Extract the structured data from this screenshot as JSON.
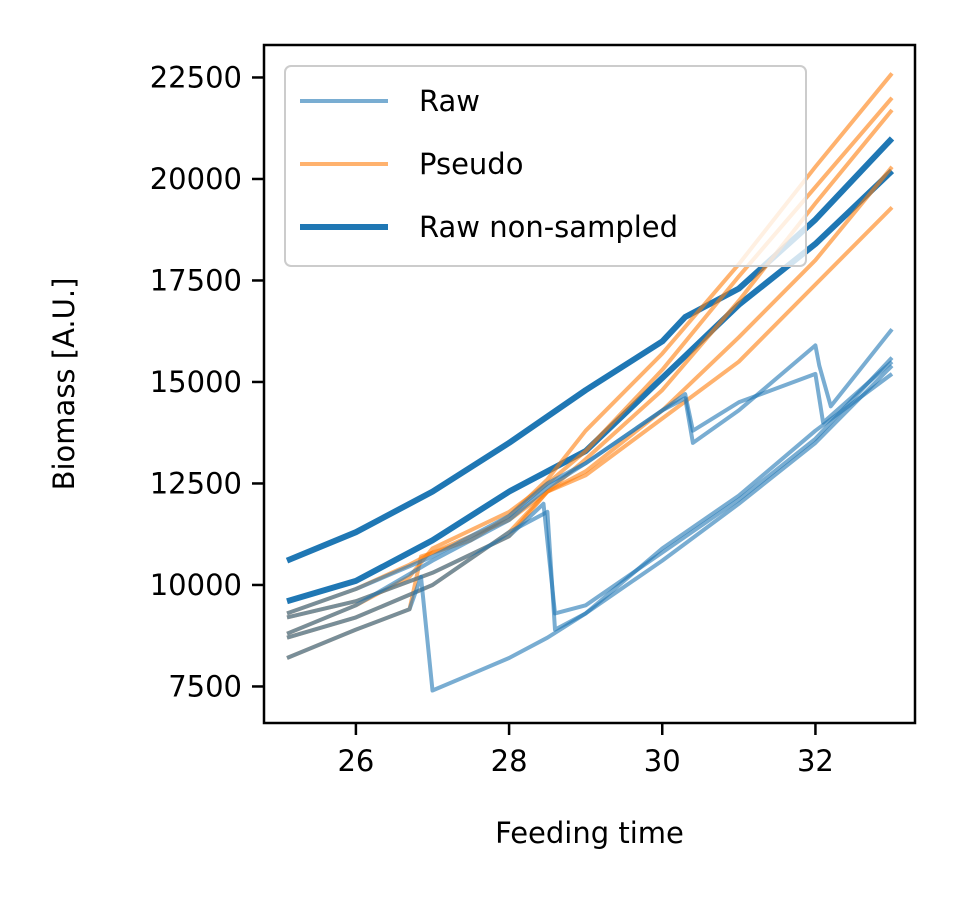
{
  "chart_data": {
    "type": "line",
    "title": "",
    "xlabel": "Feeding time",
    "ylabel": "Biomass [A.U.]",
    "xlim": [
      24.8,
      33.3
    ],
    "ylim": [
      6600,
      23300
    ],
    "xticks": [
      26,
      28,
      30,
      32
    ],
    "yticks": [
      7500,
      10000,
      12500,
      15000,
      17500,
      20000,
      22500
    ],
    "xtick_labels": [
      "26",
      "28",
      "30",
      "32"
    ],
    "ytick_labels": [
      "7500",
      "10000",
      "12500",
      "15000",
      "17500",
      "20000",
      "22500"
    ],
    "grid": false,
    "legend_position": "upper-left",
    "colors": {
      "raw": "#1f77b4",
      "pseudo": "#ff7f0e"
    },
    "legend": [
      {
        "label": "Raw",
        "style": "raw"
      },
      {
        "label": "Pseudo",
        "style": "pseudo"
      },
      {
        "label": "Raw non-sampled",
        "style": "nonsampled"
      }
    ],
    "series": [
      {
        "group": "nonsampled",
        "x": [
          25.1,
          26.0,
          27.0,
          28.0,
          29.0,
          30.0,
          30.3,
          31.0,
          32.0,
          33.0
        ],
        "y": [
          10600,
          11300,
          12300,
          13500,
          14800,
          16000,
          16600,
          17300,
          19000,
          21000
        ]
      },
      {
        "group": "nonsampled",
        "x": [
          25.1,
          26.0,
          27.0,
          28.0,
          28.5,
          29.0,
          30.0,
          31.0,
          32.0,
          33.0
        ],
        "y": [
          9600,
          10100,
          11100,
          12300,
          12800,
          13300,
          15100,
          16900,
          18400,
          20200
        ]
      },
      {
        "group": "pseudo",
        "x": [
          25.1,
          26.0,
          26.7,
          26.85,
          27.5,
          28.0,
          28.5,
          29.0,
          30.0,
          31.0,
          32.0,
          33.0
        ],
        "y": [
          8200,
          8900,
          9400,
          10700,
          11100,
          11700,
          12600,
          13800,
          15700,
          17900,
          20300,
          22600
        ]
      },
      {
        "group": "pseudo",
        "x": [
          25.1,
          26.0,
          26.7,
          27.0,
          28.0,
          28.5,
          29.0,
          30.0,
          31.0,
          32.0,
          33.0
        ],
        "y": [
          8800,
          9500,
          10200,
          10900,
          11800,
          12500,
          13300,
          15300,
          17600,
          19800,
          22000
        ]
      },
      {
        "group": "pseudo",
        "x": [
          25.1,
          26.0,
          26.7,
          27.0,
          28.0,
          28.5,
          29.0,
          30.0,
          31.0,
          32.0,
          33.0
        ],
        "y": [
          9300,
          9900,
          10500,
          10800,
          11600,
          12300,
          13100,
          14800,
          17000,
          19400,
          21700
        ]
      },
      {
        "group": "pseudo",
        "x": [
          25.1,
          26.0,
          27.0,
          28.0,
          28.5,
          29.0,
          30.0,
          31.0,
          32.0,
          33.0
        ],
        "y": [
          8700,
          9200,
          10000,
          11300,
          12300,
          12800,
          14300,
          16100,
          18000,
          20300
        ]
      },
      {
        "group": "pseudo",
        "x": [
          25.1,
          26.0,
          27.0,
          28.0,
          28.5,
          29.0,
          30.0,
          31.0,
          32.0,
          33.0
        ],
        "y": [
          9200,
          9600,
          10300,
          11200,
          12300,
          12700,
          14100,
          15500,
          17400,
          19300
        ]
      },
      {
        "group": "raw",
        "x": [
          25.1,
          26.0,
          26.7,
          26.85,
          27.0,
          27.5,
          28.0,
          28.5,
          29.0,
          30.0,
          31.0,
          32.0,
          33.0
        ],
        "y": [
          8200,
          8900,
          9400,
          10200,
          7400,
          7800,
          8200,
          8700,
          9300,
          10600,
          12000,
          13500,
          15400
        ]
      },
      {
        "group": "raw",
        "x": [
          25.1,
          26.0,
          27.0,
          28.0,
          28.5,
          28.6,
          29.0,
          30.0,
          31.0,
          32.0,
          33.0
        ],
        "y": [
          8700,
          9200,
          10000,
          11300,
          11800,
          8900,
          9300,
          10900,
          12200,
          13800,
          15200
        ]
      },
      {
        "group": "raw",
        "x": [
          25.1,
          26.0,
          27.0,
          28.0,
          28.45,
          28.6,
          29.0,
          30.0,
          31.0,
          32.0,
          33.0
        ],
        "y": [
          9200,
          9600,
          10300,
          11200,
          12000,
          9300,
          9500,
          10800,
          12100,
          13600,
          15600
        ]
      },
      {
        "group": "raw",
        "x": [
          25.1,
          26.0,
          27.0,
          28.0,
          28.5,
          29.0,
          30.0,
          30.3,
          30.4,
          31.0,
          32.0,
          32.05,
          32.2,
          33.0
        ],
        "y": [
          8800,
          9500,
          10600,
          11600,
          12400,
          13000,
          14300,
          14600,
          13500,
          14300,
          15900,
          15400,
          14400,
          16300
        ]
      },
      {
        "group": "raw",
        "x": [
          25.1,
          26.0,
          27.0,
          28.0,
          28.5,
          29.0,
          30.0,
          30.3,
          30.4,
          31.0,
          32.0,
          32.1,
          33.0
        ],
        "y": [
          9300,
          9900,
          10700,
          11700,
          12500,
          13000,
          14300,
          14700,
          13800,
          14500,
          15200,
          14000,
          15500
        ]
      }
    ]
  }
}
